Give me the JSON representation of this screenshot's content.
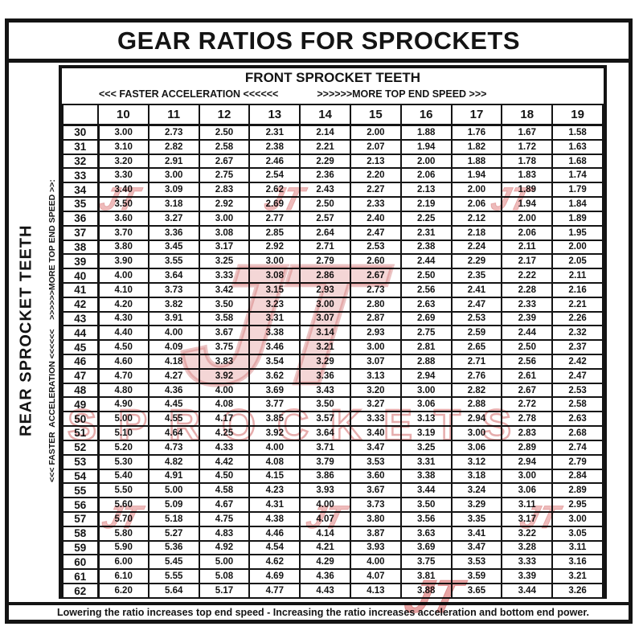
{
  "title": "GEAR RATIOS FOR SPROCKETS",
  "header": {
    "front_label": "FRONT SPROCKET TEETH",
    "faster_accel": "<<< FASTER  ACCELERATION <<<<<<",
    "more_speed": ">>>>>>MORE TOP END SPEED >>>"
  },
  "side": {
    "rear_label": "REAR SPROCKET TEETH",
    "accel_speed_label": "<<< FASTER  ACCELERATION <<<<<<    >>>>>>MORE TOP END SPEED >>:"
  },
  "footer_note": "Lowering the ratio increases top end speed - Increasing the ratio increases acceleration and bottom end power.",
  "watermark": {
    "logo_text": "JT",
    "brand_text": "SPROCKETS",
    "fill_color": "#ebb4b4",
    "stroke_color": "#ce6a6a"
  },
  "chart_data": {
    "type": "table",
    "title": "GEAR RATIOS FOR SPROCKETS",
    "xlabel": "FRONT SPROCKET TEETH",
    "ylabel": "REAR SPROCKET TEETH",
    "columns": [
      "10",
      "11",
      "12",
      "13",
      "14",
      "15",
      "16",
      "17",
      "18",
      "19"
    ],
    "rows": [
      {
        "rear": "30",
        "values": [
          "3.00",
          "2.73",
          "2.50",
          "2.31",
          "2.14",
          "2.00",
          "1.88",
          "1.76",
          "1.67",
          "1.58"
        ]
      },
      {
        "rear": "31",
        "values": [
          "3.10",
          "2.82",
          "2.58",
          "2.38",
          "2.21",
          "2.07",
          "1.94",
          "1.82",
          "1.72",
          "1.63"
        ]
      },
      {
        "rear": "32",
        "values": [
          "3.20",
          "2.91",
          "2.67",
          "2.46",
          "2.29",
          "2.13",
          "2.00",
          "1.88",
          "1.78",
          "1.68"
        ]
      },
      {
        "rear": "33",
        "values": [
          "3.30",
          "3.00",
          "2.75",
          "2.54",
          "2.36",
          "2.20",
          "2.06",
          "1.94",
          "1.83",
          "1.74"
        ]
      },
      {
        "rear": "34",
        "values": [
          "3.40",
          "3.09",
          "2.83",
          "2.62",
          "2.43",
          "2.27",
          "2.13",
          "2.00",
          "1.89",
          "1.79"
        ]
      },
      {
        "rear": "35",
        "values": [
          "3.50",
          "3.18",
          "2.92",
          "2.69",
          "2.50",
          "2.33",
          "2.19",
          "2.06",
          "1.94",
          "1.84"
        ]
      },
      {
        "rear": "36",
        "values": [
          "3.60",
          "3.27",
          "3.00",
          "2.77",
          "2.57",
          "2.40",
          "2.25",
          "2.12",
          "2.00",
          "1.89"
        ]
      },
      {
        "rear": "37",
        "values": [
          "3.70",
          "3.36",
          "3.08",
          "2.85",
          "2.64",
          "2.47",
          "2.31",
          "2.18",
          "2.06",
          "1.95"
        ]
      },
      {
        "rear": "38",
        "values": [
          "3.80",
          "3.45",
          "3.17",
          "2.92",
          "2.71",
          "2.53",
          "2.38",
          "2.24",
          "2.11",
          "2.00"
        ]
      },
      {
        "rear": "39",
        "values": [
          "3.90",
          "3.55",
          "3.25",
          "3.00",
          "2.79",
          "2.60",
          "2.44",
          "2.29",
          "2.17",
          "2.05"
        ]
      },
      {
        "rear": "40",
        "values": [
          "4.00",
          "3.64",
          "3.33",
          "3.08",
          "2.86",
          "2.67",
          "2.50",
          "2.35",
          "2.22",
          "2.11"
        ]
      },
      {
        "rear": "41",
        "values": [
          "4.10",
          "3.73",
          "3.42",
          "3.15",
          "2.93",
          "2.73",
          "2.56",
          "2.41",
          "2.28",
          "2.16"
        ]
      },
      {
        "rear": "42",
        "values": [
          "4.20",
          "3.82",
          "3.50",
          "3.23",
          "3.00",
          "2.80",
          "2.63",
          "2.47",
          "2.33",
          "2.21"
        ]
      },
      {
        "rear": "43",
        "values": [
          "4.30",
          "3.91",
          "3.58",
          "3.31",
          "3.07",
          "2.87",
          "2.69",
          "2.53",
          "2.39",
          "2.26"
        ]
      },
      {
        "rear": "44",
        "values": [
          "4.40",
          "4.00",
          "3.67",
          "3.38",
          "3.14",
          "2.93",
          "2.75",
          "2.59",
          "2.44",
          "2.32"
        ]
      },
      {
        "rear": "45",
        "values": [
          "4.50",
          "4.09",
          "3.75",
          "3.46",
          "3.21",
          "3.00",
          "2.81",
          "2.65",
          "2.50",
          "2.37"
        ]
      },
      {
        "rear": "46",
        "values": [
          "4.60",
          "4.18",
          "3.83",
          "3.54",
          "3.29",
          "3.07",
          "2.88",
          "2.71",
          "2.56",
          "2.42"
        ]
      },
      {
        "rear": "47",
        "values": [
          "4.70",
          "4.27",
          "3.92",
          "3.62",
          "3.36",
          "3.13",
          "2.94",
          "2.76",
          "2.61",
          "2.47"
        ]
      },
      {
        "rear": "48",
        "values": [
          "4.80",
          "4.36",
          "4.00",
          "3.69",
          "3.43",
          "3.20",
          "3.00",
          "2.82",
          "2.67",
          "2.53"
        ]
      },
      {
        "rear": "49",
        "values": [
          "4.90",
          "4.45",
          "4.08",
          "3.77",
          "3.50",
          "3.27",
          "3.06",
          "2.88",
          "2.72",
          "2.58"
        ]
      },
      {
        "rear": "50",
        "values": [
          "5.00",
          "4.55",
          "4.17",
          "3.85",
          "3.57",
          "3.33",
          "3.13",
          "2.94",
          "2.78",
          "2.63"
        ]
      },
      {
        "rear": "51",
        "values": [
          "5.10",
          "4.64",
          "4.25",
          "3.92",
          "3.64",
          "3.40",
          "3.19",
          "3.00",
          "2.83",
          "2.68"
        ]
      },
      {
        "rear": "52",
        "values": [
          "5.20",
          "4.73",
          "4.33",
          "4.00",
          "3.71",
          "3.47",
          "3.25",
          "3.06",
          "2.89",
          "2.74"
        ]
      },
      {
        "rear": "53",
        "values": [
          "5.30",
          "4.82",
          "4.42",
          "4.08",
          "3.79",
          "3.53",
          "3.31",
          "3.12",
          "2.94",
          "2.79"
        ]
      },
      {
        "rear": "54",
        "values": [
          "5.40",
          "4.91",
          "4.50",
          "4.15",
          "3.86",
          "3.60",
          "3.38",
          "3.18",
          "3.00",
          "2.84"
        ]
      },
      {
        "rear": "55",
        "values": [
          "5.50",
          "5.00",
          "4.58",
          "4.23",
          "3.93",
          "3.67",
          "3.44",
          "3.24",
          "3.06",
          "2.89"
        ]
      },
      {
        "rear": "56",
        "values": [
          "5.60",
          "5.09",
          "4.67",
          "4.31",
          "4.00",
          "3.73",
          "3.50",
          "3.29",
          "3.11",
          "2.95"
        ]
      },
      {
        "rear": "57",
        "values": [
          "5.70",
          "5.18",
          "4.75",
          "4.38",
          "4.07",
          "3.80",
          "3.56",
          "3.35",
          "3.17",
          "3.00"
        ]
      },
      {
        "rear": "58",
        "values": [
          "5.80",
          "5.27",
          "4.83",
          "4.46",
          "4.14",
          "3.87",
          "3.63",
          "3.41",
          "3.22",
          "3.05"
        ]
      },
      {
        "rear": "59",
        "values": [
          "5.90",
          "5.36",
          "4.92",
          "4.54",
          "4.21",
          "3.93",
          "3.69",
          "3.47",
          "3.28",
          "3.11"
        ]
      },
      {
        "rear": "60",
        "values": [
          "6.00",
          "5.45",
          "5.00",
          "4.62",
          "4.29",
          "4.00",
          "3.75",
          "3.53",
          "3.33",
          "3.16"
        ]
      },
      {
        "rear": "61",
        "values": [
          "6.10",
          "5.55",
          "5.08",
          "4.69",
          "4.36",
          "4.07",
          "3.81",
          "3.59",
          "3.39",
          "3.21"
        ]
      },
      {
        "rear": "62",
        "values": [
          "6.20",
          "5.64",
          "5.17",
          "4.77",
          "4.43",
          "4.13",
          "3.88",
          "3.65",
          "3.44",
          "3.26"
        ]
      }
    ]
  }
}
